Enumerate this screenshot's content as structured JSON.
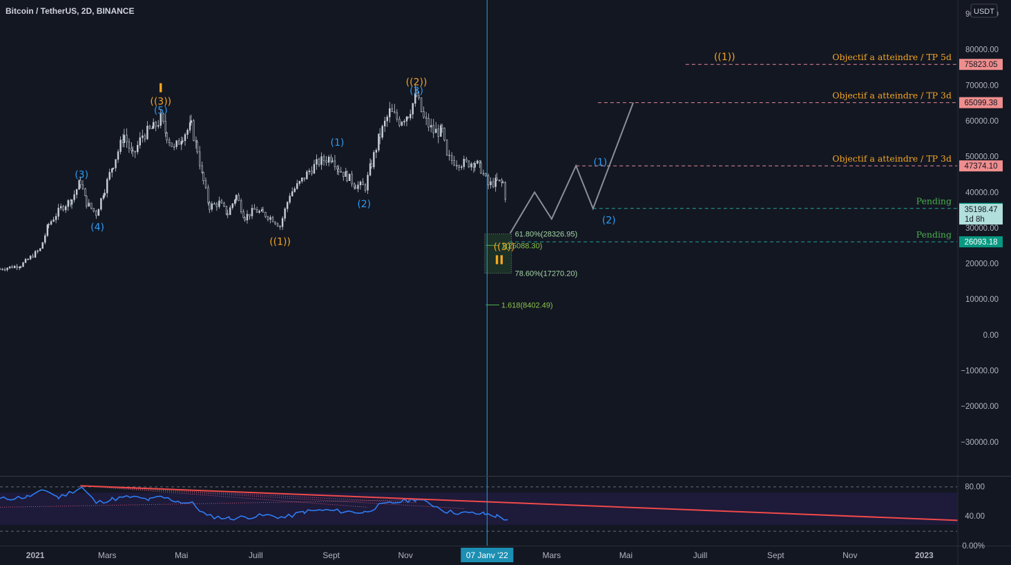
{
  "header": {
    "symbol": "Bitcoin / TetherUS, 2D, BINANCE",
    "currency_button": "USDT"
  },
  "crosshair": {
    "date_label": "07 Janv '22"
  },
  "colors": {
    "background": "#131722",
    "candle": "#c8d0d8",
    "elliott_orange": "#f5a623",
    "elliott_blue": "#2d9cf5",
    "projection": "#8a8f99",
    "target_line": "#e88a9a",
    "target_badge": "#ef8e8e",
    "pending_line": "#26a69a",
    "pending_text": "#4caf50",
    "fib_zone": "#1f3a2a",
    "fib_text": "#a5d6a7",
    "crosshair": "#2aa2d6",
    "rsi_line": "#2d7df5",
    "rsi_trend": "#f04a4a",
    "rsi_band": "#1e1a3a"
  },
  "chart_data": {
    "type": "candlestick",
    "price_axis": {
      "min": -40000,
      "max": 90000,
      "ticks": [
        {
          "value": 90000,
          "label": "90000.00"
        },
        {
          "value": 80000,
          "label": "80000.00"
        },
        {
          "value": 70000,
          "label": "70000.00"
        },
        {
          "value": 60000,
          "label": "60000.00"
        },
        {
          "value": 50000,
          "label": "50000.00"
        },
        {
          "value": 40000,
          "label": "40000.00"
        },
        {
          "value": 30000,
          "label": "30000.00"
        },
        {
          "value": 20000,
          "label": "20000.00"
        },
        {
          "value": 10000,
          "label": "10000.00"
        },
        {
          "value": 0,
          "label": "0.00"
        },
        {
          "value": -10000,
          "label": "−10000.00"
        },
        {
          "value": -20000,
          "label": "−20000.00"
        },
        {
          "value": -30000,
          "label": "−30000.00"
        }
      ]
    },
    "time_axis": {
      "start": "2020-12-03",
      "end": "2023-01-28",
      "ticks": [
        {
          "date": "2021-01-01",
          "label": "2021",
          "bold": true
        },
        {
          "date": "2021-03-01",
          "label": "Mars"
        },
        {
          "date": "2021-05-01",
          "label": "Mai"
        },
        {
          "date": "2021-07-01",
          "label": "Juill"
        },
        {
          "date": "2021-09-01",
          "label": "Sept"
        },
        {
          "date": "2021-11-01",
          "label": "Nov"
        },
        {
          "date": "2022-03-01",
          "label": "Mars"
        },
        {
          "date": "2022-05-01",
          "label": "Mai"
        },
        {
          "date": "2022-07-01",
          "label": "Juill"
        },
        {
          "date": "2022-09-01",
          "label": "Sept"
        },
        {
          "date": "2022-11-01",
          "label": "Nov"
        },
        {
          "date": "2023-01-01",
          "label": "2023",
          "bold": true
        }
      ]
    },
    "price_path": [
      [
        "2020-12-03",
        18500
      ],
      [
        "2020-12-20",
        19500
      ],
      [
        "2021-01-05",
        24000
      ],
      [
        "2021-01-12",
        31000
      ],
      [
        "2021-01-22",
        35500
      ],
      [
        "2021-01-31",
        38000
      ],
      [
        "2021-02-07",
        43000
      ],
      [
        "2021-02-12",
        37000
      ],
      [
        "2021-02-20",
        34000
      ],
      [
        "2021-02-27",
        41000
      ],
      [
        "2021-03-06",
        48000
      ],
      [
        "2021-03-15",
        56000
      ],
      [
        "2021-03-22",
        50000
      ],
      [
        "2021-03-30",
        56000
      ],
      [
        "2021-04-08",
        58000
      ],
      [
        "2021-04-14",
        60500
      ],
      [
        "2021-04-19",
        56000
      ],
      [
        "2021-04-25",
        52000
      ],
      [
        "2021-05-02",
        56000
      ],
      [
        "2021-05-09",
        58500
      ],
      [
        "2021-05-14",
        52000
      ],
      [
        "2021-05-19",
        43000
      ],
      [
        "2021-05-24",
        36000
      ],
      [
        "2021-06-01",
        37000
      ],
      [
        "2021-06-08",
        34000
      ],
      [
        "2021-06-15",
        39000
      ],
      [
        "2021-06-22",
        33000
      ],
      [
        "2021-06-30",
        35000
      ],
      [
        "2021-07-07",
        34000
      ],
      [
        "2021-07-15",
        32500
      ],
      [
        "2021-07-21",
        30500
      ],
      [
        "2021-07-29",
        39500
      ],
      [
        "2021-08-06",
        42500
      ],
      [
        "2021-08-14",
        46000
      ],
      [
        "2021-08-22",
        48500
      ],
      [
        "2021-09-02",
        50000
      ],
      [
        "2021-09-07",
        46500
      ],
      [
        "2021-09-14",
        44500
      ],
      [
        "2021-09-21",
        42000
      ],
      [
        "2021-09-29",
        41500
      ],
      [
        "2021-10-04",
        48000
      ],
      [
        "2021-10-11",
        56000
      ],
      [
        "2021-10-19",
        62500
      ],
      [
        "2021-10-27",
        60000
      ],
      [
        "2021-11-03",
        62000
      ],
      [
        "2021-11-10",
        67000
      ],
      [
        "2021-11-16",
        60500
      ],
      [
        "2021-11-24",
        57000
      ],
      [
        "2021-12-01",
        57000
      ],
      [
        "2021-12-05",
        49500
      ],
      [
        "2021-12-13",
        48500
      ],
      [
        "2021-12-21",
        48000
      ],
      [
        "2021-12-28",
        48500
      ],
      [
        "2022-01-02",
        46500
      ],
      [
        "2022-01-08",
        42000
      ],
      [
        "2022-01-15",
        43000
      ],
      [
        "2022-01-20",
        42500
      ],
      [
        "2022-01-24",
        35198
      ]
    ],
    "elliott_labels": [
      {
        "date": "2021-02-08",
        "price": 44000,
        "text": "(3)",
        "color": "elliott_blue",
        "pos": "above"
      },
      {
        "date": "2021-02-21",
        "price": 32000,
        "text": "(4)",
        "color": "elliott_blue",
        "pos": "below"
      },
      {
        "date": "2021-04-14",
        "price": 62000,
        "text": "(5)",
        "color": "elliott_blue",
        "pos": "above"
      },
      {
        "date": "2021-04-14",
        "price": 64500,
        "text": "((3))",
        "color": "elliott_orange",
        "pos": "above"
      },
      {
        "date": "2021-04-14",
        "price": 68000,
        "text": "I",
        "color": "elliott_orange",
        "pos": "above",
        "bold": true
      },
      {
        "date": "2021-07-21",
        "price": 28000,
        "text": "((1))",
        "color": "elliott_orange",
        "pos": "below"
      },
      {
        "date": "2021-09-06",
        "price": 53000,
        "text": "(1)",
        "color": "elliott_blue",
        "pos": "above"
      },
      {
        "date": "2021-09-28",
        "price": 38500,
        "text": "(2)",
        "color": "elliott_blue",
        "pos": "below"
      },
      {
        "date": "2021-11-10",
        "price": 67500,
        "text": "(3)",
        "color": "elliott_blue",
        "pos": "above"
      },
      {
        "date": "2021-11-10",
        "price": 70000,
        "text": "((2))",
        "color": "elliott_orange",
        "pos": "above"
      },
      {
        "date": "2022-01-21",
        "price": 26500,
        "text": "((3))",
        "color": "elliott_orange",
        "pos": "below"
      },
      {
        "date": "2022-01-17",
        "price": 22500,
        "text": "II",
        "color": "elliott_orange",
        "pos": "below",
        "bold": true
      },
      {
        "date": "2022-04-10",
        "price": 47500,
        "text": "(1)",
        "color": "elliott_blue",
        "pos": "above"
      },
      {
        "date": "2022-04-17",
        "price": 34000,
        "text": "(2)",
        "color": "elliott_blue",
        "pos": "below"
      },
      {
        "date": "2022-07-21",
        "price": 77000,
        "text": "((1))",
        "color": "elliott_orange",
        "pos": "above"
      }
    ],
    "projection": [
      [
        "2022-01-26",
        28500
      ],
      [
        "2022-02-15",
        40000
      ],
      [
        "2022-03-01",
        32500
      ],
      [
        "2022-03-21",
        47400
      ],
      [
        "2022-04-04",
        35400
      ],
      [
        "2022-05-07",
        65100
      ]
    ],
    "targets": [
      {
        "price": 75823.05,
        "label": "75823.05",
        "text": "Objectif a atteindre / TP 5d",
        "start": "2022-06-19"
      },
      {
        "price": 65099.38,
        "label": "65099.38",
        "text": "Objectif a atteindre / TP 3d",
        "start": "2022-04-08"
      },
      {
        "price": 47374.1,
        "label": "47374.10",
        "text": "Objectif a atteindre / TP 3d",
        "start": "2022-03-21"
      }
    ],
    "pending": [
      {
        "price": 35454.67,
        "label": "35454.67",
        "text": "Pending",
        "start": "2022-04-04"
      },
      {
        "price": 26093.18,
        "label": "26093.18",
        "text": "Pending",
        "start": "2022-01-25"
      }
    ],
    "current_price": {
      "value": 35198.47,
      "label": "35198.47",
      "countdown": "1d 8h"
    },
    "fib_zone": {
      "start": "2022-01-05",
      "end": "2022-01-27",
      "top": 28326.95,
      "bottom": 17270.2
    },
    "fib_levels": [
      {
        "price": 28326.95,
        "text": "61.80%(28326.95)",
        "start": "2022-01-27",
        "line": false
      },
      {
        "price": 25088.3,
        "text": "1(25088.30)",
        "start": "2022-01-06",
        "end": "2022-01-17",
        "line": true
      },
      {
        "price": 17270.2,
        "text": "78.60%(17270.20)",
        "start": "2022-01-27",
        "line": false
      },
      {
        "price": 8402.49,
        "text": "1.618(8402.49)",
        "start": "2022-01-06",
        "end": "2022-01-17",
        "line": true
      }
    ],
    "crosshair_date": "2022-01-07",
    "rsi": {
      "min": 0,
      "max": 100,
      "ticks": [
        {
          "value": 80,
          "label": "80.00"
        },
        {
          "value": 40,
          "label": "40.00"
        },
        {
          "value": 0,
          "label": "0.00%"
        }
      ],
      "band": [
        30,
        70
      ],
      "path": [
        [
          "2020-12-03",
          63
        ],
        [
          "2020-12-25",
          66
        ],
        [
          "2021-01-10",
          75
        ],
        [
          "2021-01-20",
          65
        ],
        [
          "2021-02-08",
          79
        ],
        [
          "2021-02-20",
          58
        ],
        [
          "2021-03-05",
          63
        ],
        [
          "2021-03-20",
          66
        ],
        [
          "2021-04-05",
          62
        ],
        [
          "2021-04-14",
          66
        ],
        [
          "2021-04-28",
          60
        ],
        [
          "2021-05-10",
          57
        ],
        [
          "2021-05-22",
          40
        ],
        [
          "2021-06-10",
          37
        ],
        [
          "2021-06-25",
          39
        ],
        [
          "2021-07-10",
          41
        ],
        [
          "2021-07-25",
          38
        ],
        [
          "2021-08-10",
          46
        ],
        [
          "2021-08-25",
          48
        ],
        [
          "2021-09-15",
          46
        ],
        [
          "2021-09-28",
          45
        ],
        [
          "2021-10-10",
          54
        ],
        [
          "2021-10-25",
          59
        ],
        [
          "2021-11-10",
          63
        ],
        [
          "2021-11-24",
          55
        ],
        [
          "2021-12-05",
          46
        ],
        [
          "2021-12-20",
          44
        ],
        [
          "2022-01-05",
          43
        ],
        [
          "2022-01-15",
          40
        ],
        [
          "2022-01-24",
          35
        ]
      ],
      "trendline": [
        [
          "2021-02-07",
          81
        ],
        [
          "2023-02-01",
          34
        ]
      ],
      "fan_lines": [
        [
          [
            "2021-02-07",
            81
          ],
          [
            "2021-12-20",
            50
          ]
        ],
        [
          [
            "2021-02-07",
            81
          ],
          [
            "2021-11-10",
            58
          ]
        ],
        [
          [
            "2021-02-07",
            81
          ],
          [
            "2021-10-01",
            52
          ]
        ],
        [
          [
            "2020-12-03",
            52
          ],
          [
            "2021-11-10",
            62
          ]
        ]
      ]
    }
  }
}
